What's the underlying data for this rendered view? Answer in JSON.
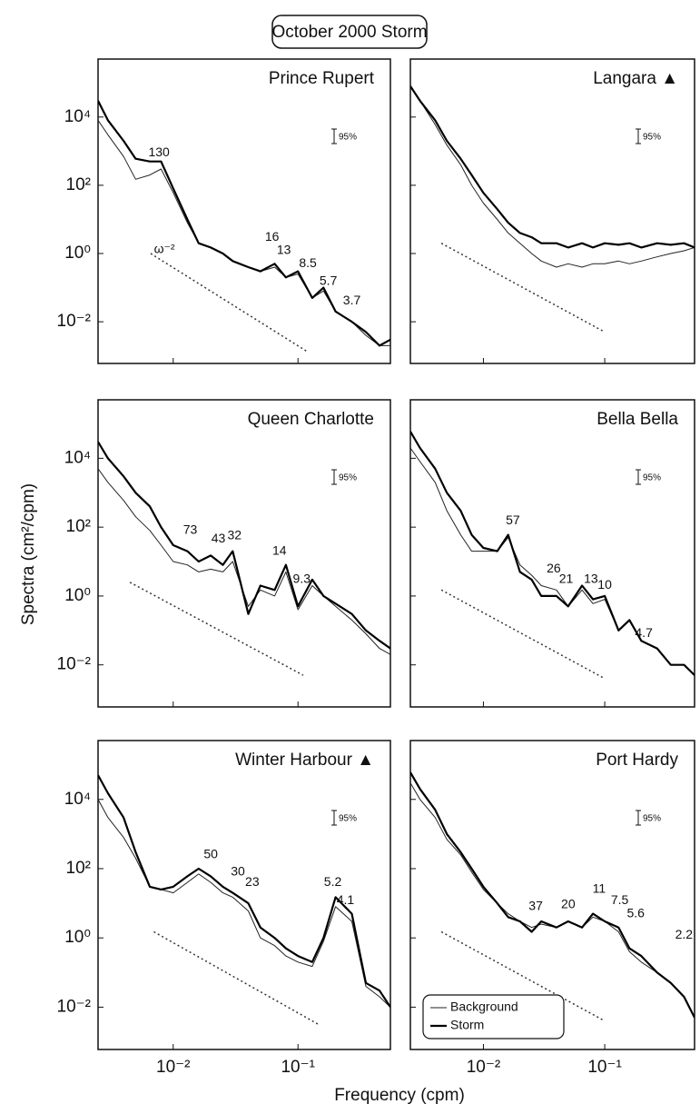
{
  "title": "October 2000 Storm",
  "ylabel": "Spectra (cm²/cpm)",
  "xlabel": "Frequency (cpm)",
  "chart_data": [
    {
      "type": "line",
      "title": "Prince Rupert",
      "xscale": "log",
      "yscale": "log",
      "xlim": [
        0.0025,
        0.55
      ],
      "ylim": [
        0.0006,
        500000
      ],
      "xticks": [
        {
          "value": 0.01,
          "label": "10⁻²"
        },
        {
          "value": 0.1,
          "label": "10⁻¹"
        }
      ],
      "yticks": [
        {
          "value": 10000,
          "label": "10⁴"
        },
        {
          "value": 100,
          "label": "10²"
        },
        {
          "value": 1,
          "label": "10⁰"
        },
        {
          "value": 0.01,
          "label": "10⁻²"
        }
      ],
      "x": [
        0.0025,
        0.003,
        0.004,
        0.005,
        0.0065,
        0.008,
        0.01,
        0.013,
        0.016,
        0.02,
        0.025,
        0.03,
        0.04,
        0.05,
        0.065,
        0.08,
        0.1,
        0.13,
        0.16,
        0.2,
        0.27,
        0.35,
        0.45,
        0.55
      ],
      "series": [
        {
          "color": "#222222",
          "width": 1,
          "values": [
            8000,
            3000,
            700,
            150,
            200,
            300,
            60,
            8,
            2,
            1.5,
            1,
            0.6,
            0.4,
            0.3,
            0.4,
            0.2,
            0.25,
            0.05,
            0.08,
            0.02,
            0.01,
            0.004,
            0.002,
            0.002
          ]
        },
        {
          "color": "#000000",
          "width": 2.2,
          "values": [
            30000,
            8000,
            2000,
            600,
            500,
            500,
            80,
            10,
            2,
            1.5,
            1,
            0.6,
            0.4,
            0.3,
            0.5,
            0.2,
            0.3,
            0.05,
            0.1,
            0.02,
            0.01,
            0.005,
            0.002,
            0.003
          ]
        }
      ],
      "annotations": [
        {
          "text": "130",
          "x": 0.0077,
          "y": 900
        },
        {
          "text": "ω⁻²",
          "x": 0.0085,
          "y": 1.3
        },
        {
          "text": "16",
          "x": 0.062,
          "y": 3
        },
        {
          "text": "13",
          "x": 0.077,
          "y": 1.2
        },
        {
          "text": "8.5",
          "x": 0.12,
          "y": 0.5
        },
        {
          "text": "5.7",
          "x": 0.175,
          "y": 0.15
        },
        {
          "text": "3.7",
          "x": 0.27,
          "y": 0.04
        }
      ],
      "reference": {
        "x": [
          0.0066,
          0.12
        ],
        "y": [
          1,
          0.0013
        ]
      },
      "ci_label": "95%"
    },
    {
      "type": "line",
      "title": "Langara ▲",
      "xscale": "log",
      "yscale": "log",
      "xlim": [
        0.0025,
        0.55
      ],
      "ylim": [
        0.0006,
        500000
      ],
      "xticks": [
        {
          "value": 0.01,
          "label": "10⁻²"
        },
        {
          "value": 0.1,
          "label": "10⁻¹"
        }
      ],
      "yticks": [
        {
          "value": 10000,
          "label": "10⁴"
        },
        {
          "value": 100,
          "label": "10²"
        },
        {
          "value": 1,
          "label": "10⁰"
        },
        {
          "value": 0.01,
          "label": "10⁻²"
        }
      ],
      "x": [
        0.0025,
        0.003,
        0.004,
        0.005,
        0.0065,
        0.008,
        0.01,
        0.013,
        0.016,
        0.02,
        0.025,
        0.03,
        0.04,
        0.05,
        0.065,
        0.08,
        0.1,
        0.13,
        0.16,
        0.2,
        0.27,
        0.35,
        0.45,
        0.55
      ],
      "series": [
        {
          "color": "#222222",
          "width": 1,
          "values": [
            80000,
            30000,
            6000,
            1500,
            400,
            100,
            30,
            10,
            4,
            2,
            1,
            0.6,
            0.4,
            0.5,
            0.4,
            0.5,
            0.5,
            0.6,
            0.5,
            0.6,
            0.8,
            1,
            1.2,
            1.5
          ]
        },
        {
          "color": "#000000",
          "width": 2.2,
          "values": [
            80000,
            30000,
            8000,
            2000,
            600,
            200,
            60,
            20,
            8,
            4,
            3,
            2,
            2,
            1.5,
            2,
            1.5,
            2,
            1.8,
            2,
            1.5,
            2,
            1.8,
            2,
            1.5
          ]
        }
      ],
      "annotations": [],
      "reference": {
        "x": [
          0.0045,
          0.1
        ],
        "y": [
          2,
          0.005
        ]
      },
      "ci_label": "95%"
    },
    {
      "type": "line",
      "title": "Queen Charlotte",
      "xscale": "log",
      "yscale": "log",
      "xlim": [
        0.0025,
        0.55
      ],
      "ylim": [
        0.0006,
        500000
      ],
      "xticks": [
        {
          "value": 0.01,
          "label": "10⁻²"
        },
        {
          "value": 0.1,
          "label": "10⁻¹"
        }
      ],
      "yticks": [
        {
          "value": 10000,
          "label": "10⁴"
        },
        {
          "value": 100,
          "label": "10²"
        },
        {
          "value": 1,
          "label": "10⁰"
        },
        {
          "value": 0.01,
          "label": "10⁻²"
        }
      ],
      "x": [
        0.0025,
        0.003,
        0.004,
        0.005,
        0.0065,
        0.008,
        0.01,
        0.013,
        0.016,
        0.02,
        0.025,
        0.03,
        0.04,
        0.05,
        0.065,
        0.08,
        0.1,
        0.13,
        0.16,
        0.2,
        0.27,
        0.35,
        0.45,
        0.55
      ],
      "series": [
        {
          "color": "#222222",
          "width": 1,
          "values": [
            5000,
            2000,
            600,
            200,
            80,
            30,
            10,
            8,
            5,
            6,
            5,
            10,
            0.5,
            1.5,
            1,
            5,
            0.4,
            2,
            1,
            0.5,
            0.2,
            0.08,
            0.03,
            0.02
          ]
        },
        {
          "color": "#000000",
          "width": 2.2,
          "values": [
            30000,
            10000,
            3000,
            1000,
            400,
            100,
            30,
            20,
            10,
            15,
            8,
            20,
            0.3,
            2,
            1.5,
            8,
            0.5,
            3,
            1,
            0.6,
            0.3,
            0.1,
            0.05,
            0.03
          ]
        }
      ],
      "annotations": [
        {
          "text": "73",
          "x": 0.0137,
          "y": 80
        },
        {
          "text": "43",
          "x": 0.023,
          "y": 45
        },
        {
          "text": "32",
          "x": 0.031,
          "y": 55
        },
        {
          "text": "14",
          "x": 0.071,
          "y": 20
        },
        {
          "text": "9.3",
          "x": 0.107,
          "y": 3
        }
      ],
      "reference": {
        "x": [
          0.0045,
          0.11
        ],
        "y": [
          2.5,
          0.005
        ]
      },
      "ci_label": "95%"
    },
    {
      "type": "line",
      "title": "Bella Bella",
      "xscale": "log",
      "yscale": "log",
      "xlim": [
        0.0025,
        0.55
      ],
      "ylim": [
        0.0006,
        500000
      ],
      "xticks": [
        {
          "value": 0.01,
          "label": "10⁻²"
        },
        {
          "value": 0.1,
          "label": "10⁻¹"
        }
      ],
      "yticks": [
        {
          "value": 10000,
          "label": "10⁴"
        },
        {
          "value": 100,
          "label": "10²"
        },
        {
          "value": 1,
          "label": "10⁰"
        },
        {
          "value": 0.01,
          "label": "10⁻²"
        }
      ],
      "x": [
        0.0025,
        0.003,
        0.004,
        0.005,
        0.0065,
        0.008,
        0.01,
        0.013,
        0.016,
        0.02,
        0.025,
        0.03,
        0.04,
        0.05,
        0.065,
        0.08,
        0.1,
        0.13,
        0.16,
        0.2,
        0.27,
        0.35,
        0.45,
        0.55
      ],
      "series": [
        {
          "color": "#222222",
          "width": 1,
          "values": [
            20000,
            8000,
            2000,
            300,
            60,
            20,
            20,
            20,
            50,
            8,
            4,
            2,
            1.5,
            0.5,
            1.5,
            0.6,
            0.8,
            0.1,
            0.2,
            0.05,
            0.03,
            0.01,
            0.01,
            0.005
          ]
        },
        {
          "color": "#000000",
          "width": 2.2,
          "values": [
            60000,
            20000,
            5000,
            1000,
            300,
            60,
            25,
            20,
            60,
            5,
            3,
            1,
            1,
            0.5,
            2,
            0.8,
            1,
            0.1,
            0.2,
            0.05,
            0.03,
            0.01,
            0.01,
            0.005
          ]
        }
      ],
      "annotations": [
        {
          "text": "57",
          "x": 0.0175,
          "y": 150
        },
        {
          "text": "26",
          "x": 0.038,
          "y": 6
        },
        {
          "text": "21",
          "x": 0.048,
          "y": 3
        },
        {
          "text": "13",
          "x": 0.077,
          "y": 3
        },
        {
          "text": "10",
          "x": 0.1,
          "y": 2
        },
        {
          "text": "4.7",
          "x": 0.21,
          "y": 0.08
        }
      ],
      "reference": {
        "x": [
          0.0045,
          0.1
        ],
        "y": [
          1.5,
          0.004
        ]
      },
      "ci_label": "95%"
    },
    {
      "type": "line",
      "title": "Winter Harbour ▲",
      "xscale": "log",
      "yscale": "log",
      "xlim": [
        0.0025,
        0.55
      ],
      "ylim": [
        0.0006,
        500000
      ],
      "xticks": [
        {
          "value": 0.01,
          "label": "10⁻²"
        },
        {
          "value": 0.1,
          "label": "10⁻¹"
        }
      ],
      "yticks": [
        {
          "value": 10000,
          "label": "10⁴"
        },
        {
          "value": 100,
          "label": "10²"
        },
        {
          "value": 1,
          "label": "10⁰"
        },
        {
          "value": 0.01,
          "label": "10⁻²"
        }
      ],
      "x": [
        0.0025,
        0.003,
        0.004,
        0.005,
        0.0065,
        0.008,
        0.01,
        0.013,
        0.016,
        0.02,
        0.025,
        0.03,
        0.04,
        0.05,
        0.065,
        0.08,
        0.1,
        0.13,
        0.16,
        0.2,
        0.27,
        0.35,
        0.45,
        0.55
      ],
      "series": [
        {
          "color": "#222222",
          "width": 1,
          "values": [
            10000,
            3000,
            800,
            200,
            30,
            25,
            20,
            40,
            70,
            40,
            20,
            15,
            6,
            1,
            0.6,
            0.3,
            0.2,
            0.15,
            0.8,
            8,
            3,
            0.04,
            0.02,
            0.01
          ]
        },
        {
          "color": "#000000",
          "width": 2.2,
          "values": [
            50000,
            15000,
            3000,
            300,
            30,
            25,
            30,
            60,
            100,
            60,
            30,
            20,
            10,
            2,
            1,
            0.5,
            0.3,
            0.2,
            1,
            15,
            5,
            0.05,
            0.03,
            0.01
          ]
        }
      ],
      "annotations": [
        {
          "text": "50",
          "x": 0.02,
          "y": 250
        },
        {
          "text": "30",
          "x": 0.033,
          "y": 80
        },
        {
          "text": "23",
          "x": 0.043,
          "y": 40
        },
        {
          "text": "5.2",
          "x": 0.19,
          "y": 40
        },
        {
          "text": "4.1",
          "x": 0.24,
          "y": 12
        }
      ],
      "reference": {
        "x": [
          0.007,
          0.15
        ],
        "y": [
          1.5,
          0.003
        ]
      },
      "ci_label": "95%"
    },
    {
      "type": "line",
      "title": "Port Hardy",
      "xscale": "log",
      "yscale": "log",
      "xlim": [
        0.0025,
        0.55
      ],
      "ylim": [
        0.0006,
        500000
      ],
      "xticks": [
        {
          "value": 0.01,
          "label": "10⁻²"
        },
        {
          "value": 0.1,
          "label": "10⁻¹"
        }
      ],
      "yticks": [
        {
          "value": 10000,
          "label": "10⁴"
        },
        {
          "value": 100,
          "label": "10²"
        },
        {
          "value": 1,
          "label": "10⁰"
        },
        {
          "value": 0.01,
          "label": "10⁻²"
        }
      ],
      "x": [
        0.0025,
        0.003,
        0.004,
        0.005,
        0.0065,
        0.008,
        0.01,
        0.013,
        0.016,
        0.02,
        0.025,
        0.03,
        0.04,
        0.05,
        0.065,
        0.08,
        0.1,
        0.13,
        0.16,
        0.2,
        0.27,
        0.35,
        0.45,
        0.55
      ],
      "series": [
        {
          "name": "Background",
          "color": "#222222",
          "width": 1,
          "values": [
            30000,
            10000,
            3000,
            700,
            250,
            80,
            25,
            10,
            5,
            3,
            2,
            2.5,
            2,
            3,
            2,
            4,
            3,
            1.5,
            0.4,
            0.2,
            0.1,
            0.05,
            0.02,
            0.005
          ]
        },
        {
          "name": "Storm",
          "color": "#000000",
          "width": 2.2,
          "values": [
            60000,
            20000,
            5000,
            1000,
            300,
            100,
            30,
            10,
            4,
            3,
            1.5,
            3,
            2,
            3,
            2,
            5,
            3,
            2,
            0.5,
            0.3,
            0.1,
            0.05,
            0.02,
            0.005
          ]
        }
      ],
      "annotations": [
        {
          "text": "37",
          "x": 0.027,
          "y": 8
        },
        {
          "text": "20",
          "x": 0.05,
          "y": 9
        },
        {
          "text": "11",
          "x": 0.09,
          "y": 25
        },
        {
          "text": "7.5",
          "x": 0.133,
          "y": 12
        },
        {
          "text": "5.6",
          "x": 0.18,
          "y": 5
        },
        {
          "text": "2.2",
          "x": 0.45,
          "y": 1.2
        }
      ],
      "reference": {
        "x": [
          0.0045,
          0.1
        ],
        "y": [
          1.5,
          0.004
        ]
      },
      "ci_label": "95%",
      "legend": "lower left"
    }
  ]
}
